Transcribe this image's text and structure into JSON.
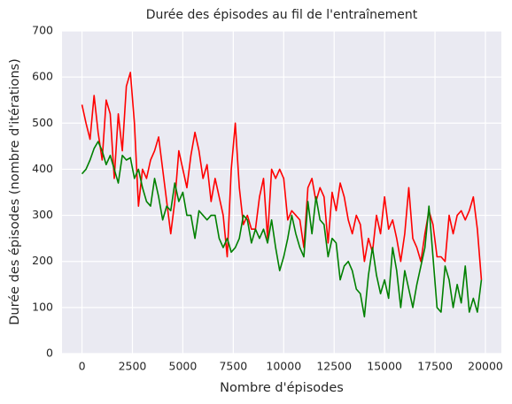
{
  "chart_data": {
    "type": "line",
    "title": "Durée des épisodes au fil de l'entraînement",
    "x_label": "Nombre d'épisodes",
    "y_label": "Durée des épisodes (nombre d'itérations)",
    "x": [
      0,
      200,
      400,
      600,
      800,
      1000,
      1200,
      1400,
      1600,
      1800,
      2000,
      2200,
      2400,
      2600,
      2800,
      3000,
      3200,
      3400,
      3600,
      3800,
      4000,
      4200,
      4400,
      4600,
      4800,
      5000,
      5200,
      5400,
      5600,
      5800,
      6000,
      6200,
      6400,
      6600,
      6800,
      7000,
      7200,
      7400,
      7600,
      7800,
      8000,
      8200,
      8400,
      8600,
      8800,
      9000,
      9200,
      9400,
      9600,
      9800,
      10000,
      10200,
      10400,
      10600,
      10800,
      11000,
      11200,
      11400,
      11600,
      11800,
      12000,
      12200,
      12400,
      12600,
      12800,
      13000,
      13200,
      13400,
      13600,
      13800,
      14000,
      14200,
      14400,
      14600,
      14800,
      15000,
      15200,
      15400,
      15600,
      15800,
      16000,
      16200,
      16400,
      16600,
      16800,
      17000,
      17200,
      17400,
      17600,
      17800,
      18000,
      18200,
      18400,
      18600,
      18800,
      19000,
      19200,
      19400,
      19600,
      19800
    ],
    "series": [
      {
        "color": "#ff0000",
        "values": [
          540,
          500,
          465,
          560,
          480,
          420,
          550,
          520,
          380,
          520,
          440,
          580,
          610,
          500,
          320,
          400,
          380,
          420,
          440,
          470,
          400,
          330,
          260,
          330,
          440,
          400,
          360,
          430,
          480,
          440,
          380,
          410,
          330,
          380,
          340,
          300,
          210,
          400,
          500,
          360,
          280,
          300,
          270,
          270,
          340,
          380,
          250,
          400,
          380,
          400,
          380,
          290,
          310,
          300,
          290,
          230,
          360,
          380,
          330,
          360,
          340,
          240,
          350,
          310,
          370,
          340,
          290,
          260,
          300,
          280,
          200,
          250,
          220,
          300,
          260,
          340,
          270,
          290,
          250,
          200,
          260,
          360,
          250,
          230,
          200,
          260,
          310,
          280,
          210,
          210,
          200,
          300,
          260,
          300,
          310,
          290,
          310,
          340,
          270,
          160
        ]
      },
      {
        "color": "#008000",
        "values": [
          390,
          400,
          420,
          445,
          460,
          440,
          410,
          430,
          400,
          370,
          430,
          420,
          425,
          380,
          400,
          360,
          330,
          320,
          380,
          340,
          290,
          320,
          310,
          370,
          330,
          350,
          300,
          300,
          250,
          310,
          300,
          290,
          300,
          300,
          250,
          230,
          250,
          220,
          230,
          250,
          300,
          290,
          240,
          270,
          250,
          270,
          240,
          290,
          230,
          180,
          210,
          250,
          300,
          260,
          230,
          210,
          330,
          260,
          340,
          290,
          280,
          210,
          250,
          240,
          160,
          190,
          200,
          180,
          140,
          130,
          80,
          170,
          230,
          170,
          130,
          160,
          120,
          230,
          180,
          100,
          180,
          140,
          100,
          150,
          190,
          230,
          320,
          210,
          100,
          90,
          190,
          160,
          100,
          150,
          110,
          190,
          90,
          120,
          90,
          160
        ]
      }
    ],
    "xlim": [
      -990,
      20790
    ],
    "ylim": [
      0,
      700
    ],
    "xticks": [
      0,
      2500,
      5000,
      7500,
      10000,
      12500,
      15000,
      17500,
      20000
    ],
    "yticks": [
      0,
      100,
      200,
      300,
      400,
      500,
      600,
      700
    ],
    "grid": true
  }
}
